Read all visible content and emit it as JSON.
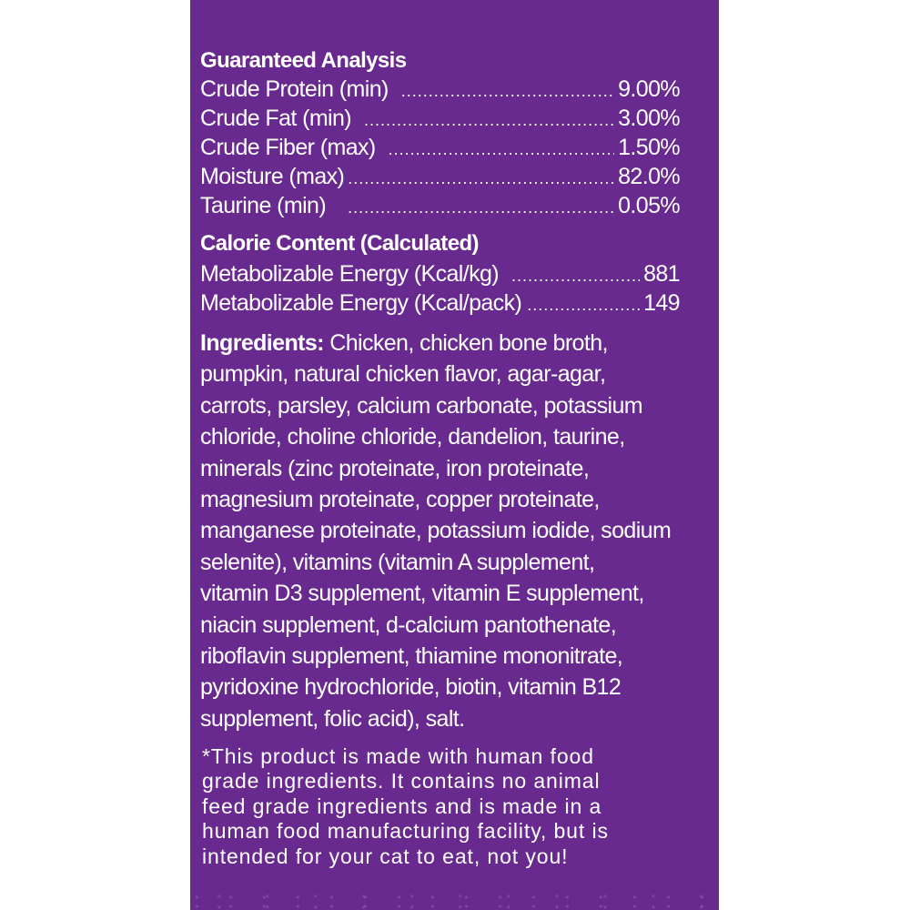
{
  "colors": {
    "panel": "#682a8e",
    "text": "#ffffff",
    "background": "#ffffff"
  },
  "guaranteed_analysis": {
    "title": "Guaranteed Analysis",
    "rows": [
      {
        "label": "Crude Protein (min)",
        "value": "9.00%"
      },
      {
        "label": "Crude Fat (min)",
        "value": "3.00%"
      },
      {
        "label": "Crude Fiber (max)",
        "value": "1.50%"
      },
      {
        "label": "Moisture (max)",
        "value": "82.0%"
      },
      {
        "label": "Taurine (min)",
        "value": "0.05%"
      }
    ]
  },
  "calorie_content": {
    "title": "Calorie Content (Calculated)",
    "rows": [
      {
        "label": "Metabolizable Energy (Kcal/kg)",
        "value": "881"
      },
      {
        "label": "Metabolizable Energy (Kcal/pack)",
        "value": "149"
      }
    ]
  },
  "ingredients": {
    "label": "Ingredients:",
    "lines": [
      "Chicken, chicken bone broth,",
      "pumpkin, natural chicken flavor, agar-agar,",
      "carrots, parsley, calcium carbonate, potassium",
      "chloride, choline chloride, dandelion, taurine,",
      "minerals (zinc proteinate, iron proteinate,",
      "magnesium proteinate, copper proteinate,",
      "manganese proteinate, potassium iodide, sodium",
      "selenite), vitamins (vitamin A supplement,",
      "vitamin D3 supplement, vitamin E supplement,",
      "niacin supplement, d-calcium pantothenate,",
      "riboflavin supplement, thiamine mononitrate,",
      "pyridoxine hydrochloride, biotin, vitamin B12",
      "supplement, folic acid), salt."
    ]
  },
  "footnote": {
    "lines": [
      "*This product is made with human food",
      "grade ingredients. It contains no animal",
      "feed grade ingredients and is made in a",
      "human food manufacturing facility, but is",
      "intended for your cat to eat, not you!"
    ]
  }
}
